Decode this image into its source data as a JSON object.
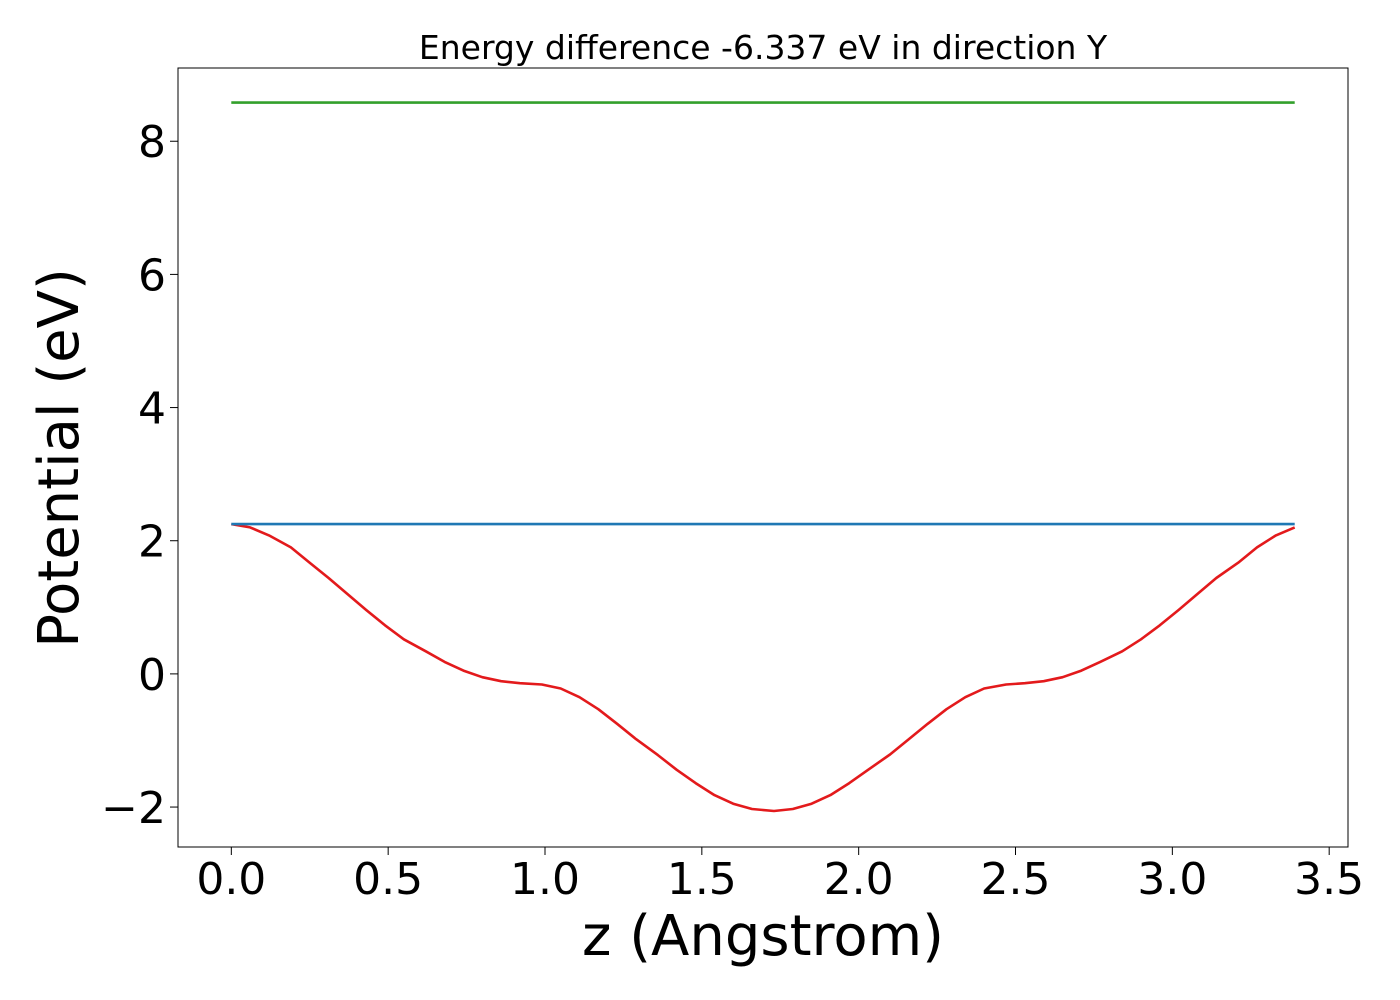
{
  "chart_data": {
    "type": "line",
    "title": "Energy difference -6.337 eV in direction Y",
    "xlabel": "z (Angstrom)",
    "ylabel": "Potential (eV)",
    "xlim": [
      -0.17,
      3.56
    ],
    "ylim": [
      -2.6,
      9.1
    ],
    "xticks": [
      0.0,
      0.5,
      1.0,
      1.5,
      2.0,
      2.5,
      3.0,
      3.5
    ],
    "xtick_labels": [
      "0.0",
      "0.5",
      "1.0",
      "1.5",
      "2.0",
      "2.5",
      "3.0",
      "3.5"
    ],
    "yticks": [
      -2,
      0,
      2,
      4,
      6,
      8
    ],
    "ytick_labels": [
      "−2",
      "0",
      "2",
      "4",
      "6",
      "8"
    ],
    "grid": false,
    "legend": "none",
    "series": [
      {
        "color": "#e31a1c",
        "x": [
          0.0,
          0.06,
          0.12,
          0.19,
          0.25,
          0.31,
          0.37,
          0.43,
          0.49,
          0.55,
          0.62,
          0.68,
          0.74,
          0.8,
          0.86,
          0.92,
          0.99,
          1.05,
          1.11,
          1.17,
          1.23,
          1.29,
          1.36,
          1.42,
          1.48,
          1.54,
          1.6,
          1.66,
          1.73,
          1.79,
          1.85,
          1.91,
          1.97,
          2.03,
          2.1,
          2.16,
          2.22,
          2.28,
          2.34,
          2.4,
          2.47,
          2.53,
          2.59,
          2.65,
          2.71,
          2.77,
          2.84,
          2.9,
          2.96,
          3.02,
          3.08,
          3.14,
          3.21,
          3.27,
          3.33,
          3.39
        ],
        "y": [
          2.25,
          2.2,
          2.08,
          1.9,
          1.67,
          1.44,
          1.2,
          0.96,
          0.73,
          0.52,
          0.34,
          0.18,
          0.05,
          -0.05,
          -0.11,
          -0.14,
          -0.16,
          -0.22,
          -0.35,
          -0.53,
          -0.75,
          -0.98,
          -1.22,
          -1.44,
          -1.64,
          -1.82,
          -1.95,
          -2.03,
          -2.06,
          -2.03,
          -1.95,
          -1.82,
          -1.64,
          -1.44,
          -1.21,
          -0.98,
          -0.75,
          -0.53,
          -0.35,
          -0.22,
          -0.16,
          -0.14,
          -0.11,
          -0.05,
          0.05,
          0.18,
          0.34,
          0.52,
          0.73,
          0.96,
          1.2,
          1.44,
          1.67,
          1.9,
          2.08,
          2.2
        ]
      },
      {
        "color": "#1f78b4",
        "x": [
          0.0,
          3.39
        ],
        "y": [
          2.25,
          2.25
        ]
      },
      {
        "color": "#33a02c",
        "x": [
          0.0,
          3.39
        ],
        "y": [
          8.58,
          8.58
        ]
      }
    ]
  }
}
